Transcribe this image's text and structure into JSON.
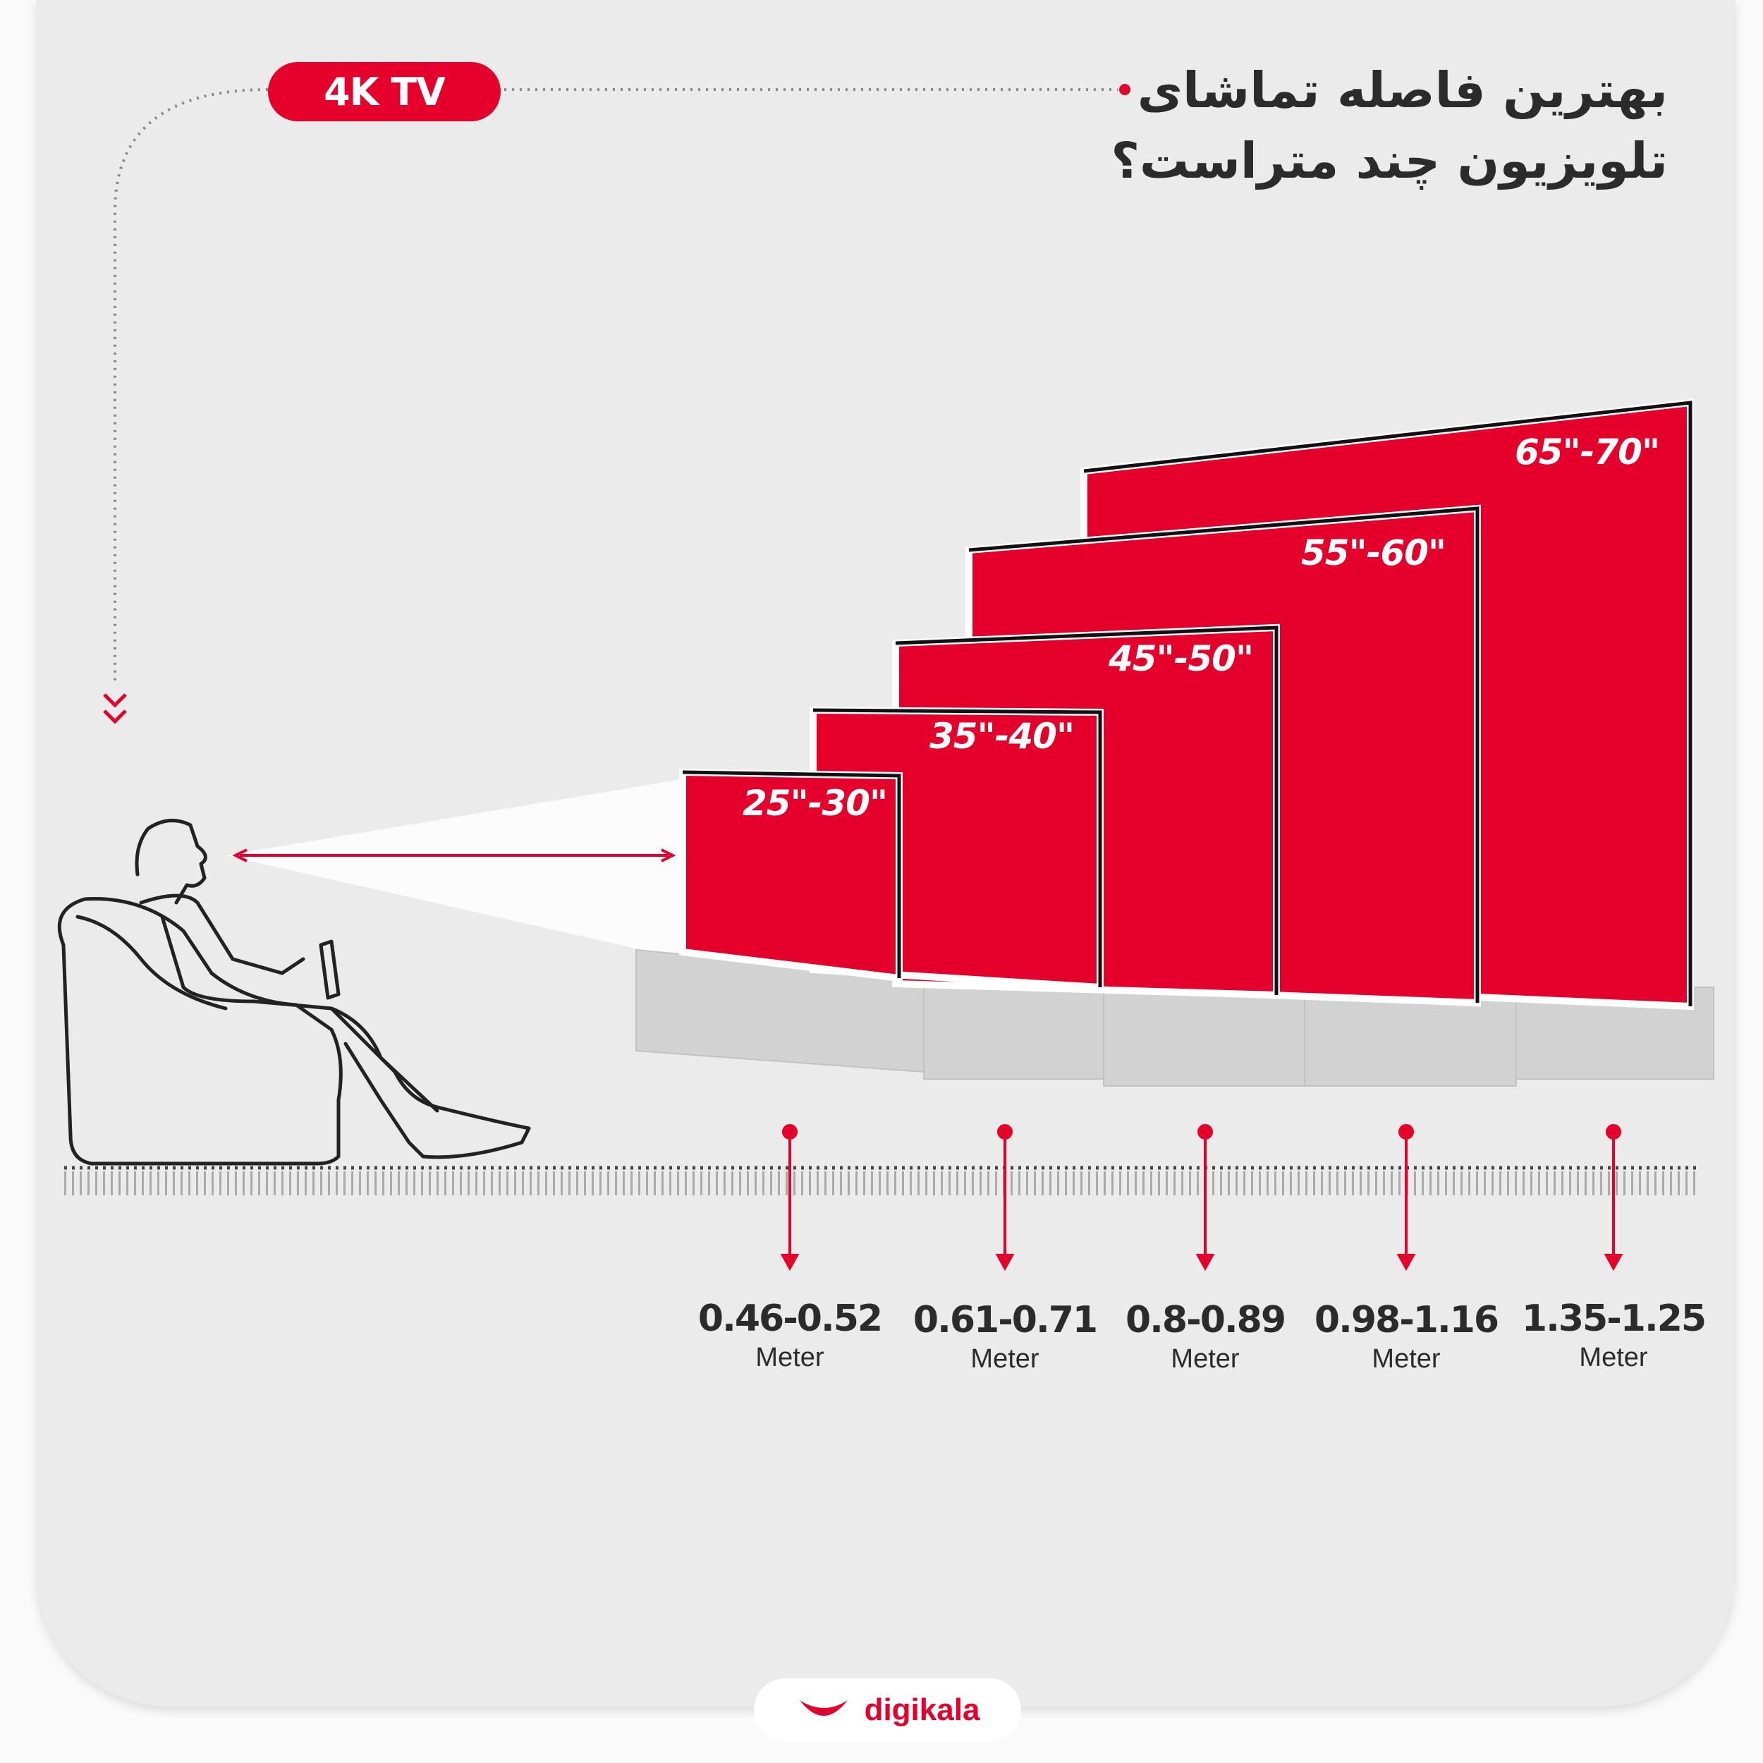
{
  "badge": "4K TV",
  "title": {
    "line1": "بهترین فاصله تماشای",
    "line2": "تلویزیون چند متراست؟"
  },
  "colors": {
    "accent": "#e4002b",
    "text": "#2b2b2b",
    "background": "#ebebeb"
  },
  "tvs": [
    {
      "size": "25\"-30\"",
      "distance": "0.46-0.52",
      "unit": "Meter"
    },
    {
      "size": "35\"-40\"",
      "distance": "0.61-0.71",
      "unit": "Meter"
    },
    {
      "size": "45\"-50\"",
      "distance": "0.8-0.89",
      "unit": "Meter"
    },
    {
      "size": "55\"-60\"",
      "distance": "0.98-1.16",
      "unit": "Meter"
    },
    {
      "size": "65\"-70\"",
      "distance": "1.35-1.25",
      "unit": "Meter"
    }
  ],
  "brand": {
    "name": "digikala",
    "icon": "digikala-smile-logo"
  }
}
